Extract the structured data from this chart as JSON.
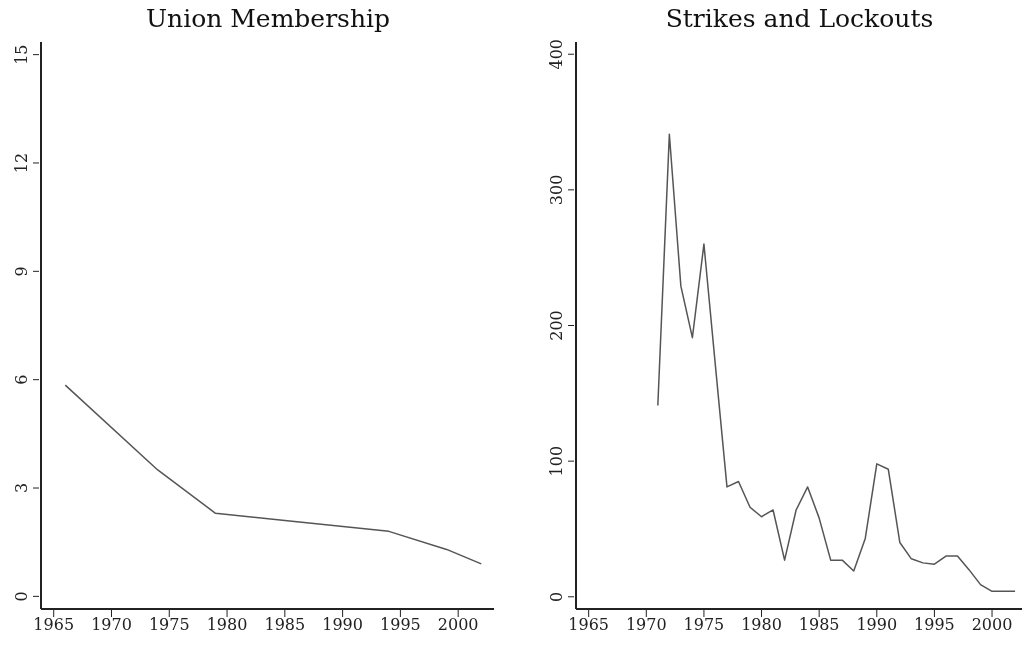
{
  "chart_data": [
    {
      "type": "line",
      "title": "Union Membership",
      "x": [
        1966,
        1974,
        1979,
        1985,
        1994,
        1999,
        2002
      ],
      "values": [
        5.85,
        3.5,
        2.3,
        2.1,
        1.8,
        1.3,
        0.9
      ],
      "color": "#555555",
      "xlim": [
        1963.9,
        2003.1
      ],
      "ylim": [
        -0.35,
        15.35
      ],
      "xticks": [
        1965,
        1970,
        1975,
        1980,
        1985,
        1990,
        1995,
        2000
      ],
      "yticks": [
        0,
        3,
        6,
        9,
        12,
        15
      ],
      "grid": false
    },
    {
      "type": "line",
      "title": "Strikes and Lockouts",
      "x": [
        1971,
        1972,
        1973,
        1974,
        1975,
        1976,
        1977,
        1978,
        1979,
        1980,
        1981,
        1982,
        1983,
        1984,
        1985,
        1986,
        1987,
        1988,
        1989,
        1990,
        1991,
        1992,
        1993,
        1994,
        1995,
        1996,
        1997,
        1998,
        1999,
        2000,
        2001,
        2002
      ],
      "values": [
        141,
        341,
        229,
        191,
        260,
        170,
        81,
        85,
        66,
        59,
        64,
        27,
        64,
        81,
        58,
        27,
        27,
        19,
        43,
        98,
        94,
        40,
        28,
        25,
        24,
        30,
        30,
        20,
        9,
        4,
        4,
        4
      ],
      "color": "#555555",
      "xlim": [
        1963.9,
        2002.6
      ],
      "ylim": [
        -9,
        409
      ],
      "xticks": [
        1965,
        1970,
        1975,
        1980,
        1985,
        1990,
        1995,
        2000
      ],
      "yticks": [
        0,
        100,
        200,
        300,
        400
      ],
      "grid": false
    }
  ]
}
